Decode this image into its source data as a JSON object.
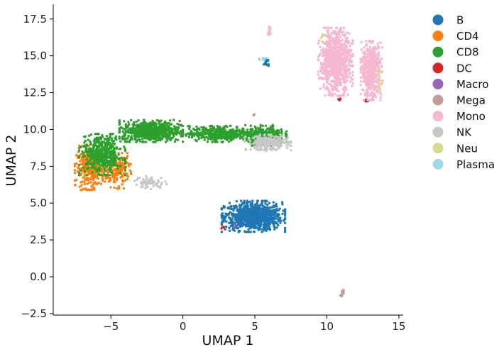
{
  "chart_data": {
    "type": "scatter",
    "title": "",
    "xlabel": "UMAP 1",
    "ylabel": "UMAP 2",
    "xlim": [
      -9,
      15.3
    ],
    "ylim": [
      -2.6,
      18.5
    ],
    "xticks": [
      -5,
      0,
      5,
      10,
      15
    ],
    "yticks": [
      -2.5,
      0.0,
      2.5,
      5.0,
      7.5,
      10.0,
      12.5,
      15.0,
      17.5
    ],
    "xtick_labels": [
      "−5",
      "0",
      "5",
      "10",
      "15"
    ],
    "ytick_labels": [
      "−2.5",
      "0.0",
      "2.5",
      "5.0",
      "7.5",
      "10.0",
      "12.5",
      "15.0",
      "17.5"
    ],
    "grid": false,
    "legend_position": "outside-right",
    "series": [
      {
        "name": "B",
        "color": "#1f77b4",
        "clusters": [
          {
            "cx": 4.9,
            "cy": 4.1,
            "rx": 2.2,
            "ry": 1.05,
            "n": 900
          },
          {
            "cx": 5.8,
            "cy": 14.6,
            "rx": 0.25,
            "ry": 0.45,
            "n": 18
          }
        ]
      },
      {
        "name": "CD4",
        "color": "#ff7f0e",
        "clusters": [
          {
            "cx": -6.4,
            "cy": 7.4,
            "rx": 1.1,
            "ry": 1.5,
            "n": 320
          },
          {
            "cx": -4.6,
            "cy": 7.2,
            "rx": 1.0,
            "ry": 1.2,
            "n": 160
          }
        ]
      },
      {
        "name": "CD8",
        "color": "#2ca02c",
        "clusters": [
          {
            "cx": -2.2,
            "cy": 9.9,
            "rx": 2.2,
            "ry": 0.75,
            "n": 700
          },
          {
            "cx": 2.6,
            "cy": 9.7,
            "rx": 2.4,
            "ry": 0.55,
            "n": 420
          },
          {
            "cx": 5.7,
            "cy": 9.6,
            "rx": 1.5,
            "ry": 0.7,
            "n": 300
          },
          {
            "cx": -5.6,
            "cy": 8.3,
            "rx": 1.6,
            "ry": 1.4,
            "n": 500
          }
        ]
      },
      {
        "name": "DC",
        "color": "#d62728",
        "clusters": [
          {
            "cx": 2.8,
            "cy": 3.3,
            "rx": 0.2,
            "ry": 0.1,
            "n": 4
          },
          {
            "cx": 11.0,
            "cy": 12.0,
            "rx": 0.2,
            "ry": 0.15,
            "n": 5
          },
          {
            "cx": 12.8,
            "cy": 11.9,
            "rx": 0.2,
            "ry": 0.12,
            "n": 4
          }
        ]
      },
      {
        "name": "Macro",
        "color": "#9467bd",
        "clusters": [
          {
            "cx": 3.5,
            "cy": 3.6,
            "rx": 0.3,
            "ry": 0.3,
            "n": 3
          }
        ]
      },
      {
        "name": "Mega",
        "color": "#c49c94",
        "clusters": [
          {
            "cx": 11.1,
            "cy": -1.1,
            "rx": 0.15,
            "ry": 0.35,
            "n": 14
          },
          {
            "cx": 4.9,
            "cy": 11.0,
            "rx": 0.12,
            "ry": 0.08,
            "n": 5
          }
        ]
      },
      {
        "name": "Mono",
        "color": "#f7b6d2",
        "clusters": [
          {
            "cx": 10.6,
            "cy": 14.6,
            "rx": 1.2,
            "ry": 2.3,
            "n": 850
          },
          {
            "cx": 13.1,
            "cy": 14.0,
            "rx": 0.75,
            "ry": 2.0,
            "n": 500
          },
          {
            "cx": 6.0,
            "cy": 16.6,
            "rx": 0.1,
            "ry": 0.4,
            "n": 14
          }
        ]
      },
      {
        "name": "NK",
        "color": "#c7c7c7",
        "clusters": [
          {
            "cx": 5.9,
            "cy": 9.1,
            "rx": 1.6,
            "ry": 0.55,
            "n": 260
          },
          {
            "cx": -2.3,
            "cy": 6.4,
            "rx": 1.2,
            "ry": 0.45,
            "n": 60
          }
        ]
      },
      {
        "name": "Neu",
        "color": "#dbdb8d",
        "clusters": [
          {
            "cx": 13.7,
            "cy": 13.5,
            "rx": 0.2,
            "ry": 1.3,
            "n": 12
          },
          {
            "cx": 9.7,
            "cy": 16.1,
            "rx": 0.3,
            "ry": 0.5,
            "n": 5
          }
        ]
      },
      {
        "name": "Plasma",
        "color": "#9edae5",
        "clusters": [
          {
            "cx": 5.6,
            "cy": 14.8,
            "rx": 0.3,
            "ry": 0.15,
            "n": 12
          }
        ]
      }
    ]
  }
}
